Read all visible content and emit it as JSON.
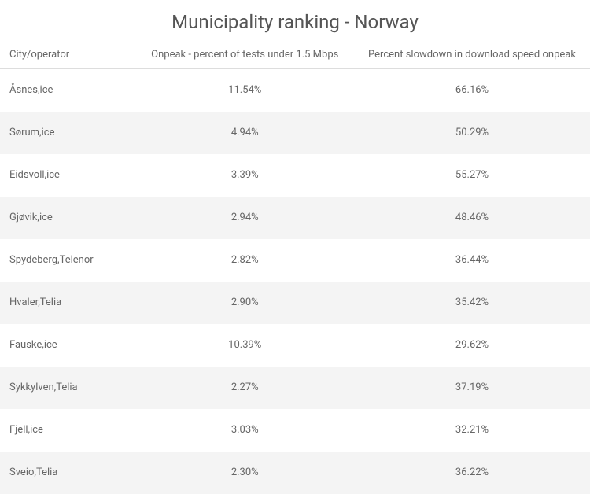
{
  "title": "Municipality ranking - Norway",
  "table": {
    "columns": [
      "City/operator",
      "Onpeak - percent of tests under 1.5 Mbps",
      "Percent slowdown in download speed onpeak"
    ],
    "rows": [
      {
        "city": "Åsnes,ice",
        "onpeak": "11.54%",
        "slowdown": "66.16%"
      },
      {
        "city": "Sørum,ice",
        "onpeak": "4.94%",
        "slowdown": "50.29%"
      },
      {
        "city": "Eidsvoll,ice",
        "onpeak": "3.39%",
        "slowdown": "55.27%"
      },
      {
        "city": "Gjøvik,ice",
        "onpeak": "2.94%",
        "slowdown": "48.46%"
      },
      {
        "city": "Spydeberg,Telenor",
        "onpeak": "2.82%",
        "slowdown": "36.44%"
      },
      {
        "city": "Hvaler,Telia",
        "onpeak": "2.90%",
        "slowdown": "35.42%"
      },
      {
        "city": "Fauske,ice",
        "onpeak": "10.39%",
        "slowdown": "29.62%"
      },
      {
        "city": "Sykkylven,Telia",
        "onpeak": "2.27%",
        "slowdown": "37.19%"
      },
      {
        "city": "Fjell,ice",
        "onpeak": "3.03%",
        "slowdown": "32.21%"
      },
      {
        "city": "Sveio,Telia",
        "onpeak": "2.30%",
        "slowdown": "36.22%"
      }
    ],
    "row_alt_bg": "#f4f4f4",
    "header_border": "#dddddd",
    "text_color": "#666666",
    "title_color": "#555555",
    "title_fontsize": 24,
    "body_fontsize": 13
  }
}
